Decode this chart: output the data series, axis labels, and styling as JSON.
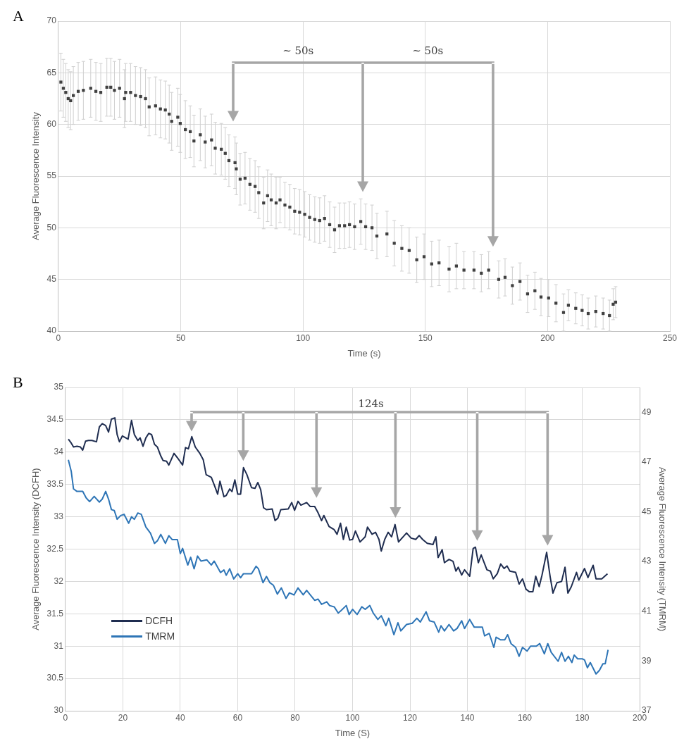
{
  "chart_data": [
    {
      "type": "scatter",
      "xlabel": "Time (s)",
      "ylabel": "Average Fluorescence Intensity",
      "grid": true,
      "marker": "square",
      "color": "#404040",
      "annotations": [
        "A",
        "~ 50s",
        "~ 50s"
      ],
      "xlim": [
        0,
        250
      ],
      "xticks": [
        0,
        50,
        100,
        150,
        200,
        250
      ],
      "ylim": [
        40,
        70
      ],
      "yticks": [
        40,
        45,
        50,
        55,
        60,
        65,
        70
      ],
      "x": [
        1,
        2,
        3,
        4,
        5,
        6.1,
        8.1,
        10.2,
        13.2,
        15.3,
        17.3,
        19.8,
        21.4,
        22.9,
        25,
        27,
        27.5,
        29.5,
        31.5,
        33.6,
        35.6,
        37.1,
        39.7,
        41.7,
        43.7,
        45.3,
        46.3,
        48.8,
        49.8,
        51.9,
        53.9,
        55.4,
        58,
        60,
        62.6,
        64.1,
        66.6,
        68.2,
        69.7,
        72.2,
        72.7,
        74.3,
        76.3,
        78.3,
        80.4,
        81.9,
        83.9,
        85.5,
        87,
        89,
        90.6,
        92.6,
        94.6,
        96.6,
        98.6,
        100.7,
        102.7,
        104.8,
        106.8,
        108.8,
        110.9,
        112.9,
        114.9,
        117,
        119,
        121.1,
        123.6,
        125.6,
        128.2,
        130.2,
        134.3,
        137.3,
        140.4,
        143.4,
        146.5,
        149.5,
        152.6,
        155.6,
        159.7,
        162.7,
        165.8,
        169.9,
        172.9,
        175.9,
        180,
        182.6,
        185.6,
        188.7,
        191.8,
        194.8,
        197.3,
        200.4,
        203.4,
        206.5,
        208.5,
        211.5,
        214.1,
        216.6,
        219.7,
        222.7,
        225.3,
        226.8,
        227.8
      ],
      "values": [
        64.1,
        63.5,
        63.1,
        62.5,
        62.3,
        62.8,
        63.2,
        63.3,
        63.5,
        63.2,
        63.1,
        63.6,
        63.6,
        63.3,
        63.5,
        62.5,
        63.1,
        63.1,
        62.8,
        62.7,
        62.5,
        61.7,
        61.8,
        61.5,
        61.4,
        61.0,
        60.3,
        60.7,
        60.1,
        59.5,
        59.3,
        58.4,
        59.0,
        58.3,
        58.5,
        57.7,
        57.6,
        57.2,
        56.5,
        56.3,
        55.7,
        54.7,
        54.8,
        54.2,
        54.0,
        53.4,
        52.4,
        53.1,
        52.7,
        52.4,
        52.7,
        52.2,
        52.0,
        51.6,
        51.5,
        51.3,
        51.0,
        50.8,
        50.7,
        50.9,
        50.3,
        49.8,
        50.2,
        50.2,
        50.3,
        50.1,
        50.6,
        50.1,
        50.0,
        49.2,
        49.4,
        48.5,
        48.0,
        47.8,
        46.9,
        47.2,
        46.5,
        46.6,
        46.0,
        46.3,
        45.9,
        45.9,
        45.6,
        45.9,
        45.0,
        45.2,
        44.4,
        44.8,
        43.6,
        43.9,
        43.3,
        43.2,
        42.7,
        41.8,
        42.5,
        42.2,
        42.0,
        41.7,
        41.9,
        41.7,
        41.5,
        42.6,
        42.8
      ],
      "errors": [
        2.8,
        2.8,
        2.8,
        2.8,
        2.8,
        2.8,
        2.8,
        2.8,
        2.8,
        2.8,
        2.8,
        2.8,
        2.8,
        2.8,
        2.8,
        2.8,
        2.8,
        2.8,
        2.8,
        2.8,
        2.8,
        2.8,
        2.8,
        2.8,
        2.8,
        2.8,
        2.8,
        2.8,
        2.8,
        2.8,
        2.5,
        2.5,
        2.5,
        2.5,
        2.5,
        2.5,
        2.5,
        2.5,
        2.5,
        2.5,
        2.5,
        2.5,
        2.5,
        2.5,
        2.5,
        2.5,
        2.5,
        2.5,
        2.5,
        2.5,
        2.2,
        2.2,
        2.2,
        2.2,
        2.2,
        2.2,
        2.2,
        2.2,
        2.2,
        2.2,
        2.2,
        2.2,
        2.2,
        2.2,
        2.2,
        2.2,
        2.2,
        2.2,
        2.2,
        2.2,
        2.2,
        2.2,
        2.2,
        2.2,
        2.2,
        2.2,
        2.2,
        2.2,
        2.2,
        2.2,
        1.8,
        1.8,
        1.8,
        1.8,
        1.8,
        1.8,
        1.8,
        1.8,
        1.8,
        1.8,
        1.8,
        1.8,
        1.8,
        1.8,
        1.5,
        1.5,
        1.5,
        1.5,
        1.5,
        1.5,
        1.5,
        1.5,
        1.5
      ]
    },
    {
      "type": "line",
      "xlabel": "Time (S)",
      "ylabel": "Average Fluorescence Intensity (DCFH)",
      "y2label": "Average Fluorescence Intensity (TMRM)",
      "grid": true,
      "legend": "bottom left",
      "line_style": "solid",
      "annotations": [
        "B",
        "124s"
      ],
      "xlim": [
        0,
        200
      ],
      "xticks": [
        0,
        20,
        40,
        60,
        80,
        100,
        120,
        140,
        160,
        180,
        200
      ],
      "ylim": [
        30,
        35
      ],
      "yticks": [
        30,
        30.5,
        31,
        31.5,
        32,
        32.5,
        33,
        33.5,
        34,
        34.5,
        35
      ],
      "y2lim": [
        37,
        50
      ],
      "y2ticks": [
        37,
        39,
        41,
        43,
        45,
        47,
        49
      ],
      "series": [
        {
          "name": "DCFH",
          "color": "#1f2d50",
          "x": [
            1,
            2,
            2.8,
            4,
            5.2,
            6,
            7,
            8,
            9.2,
            10.8,
            11.8,
            12.8,
            14,
            15,
            16,
            17.2,
            18,
            18.8,
            19.8,
            21.8,
            23,
            24,
            25.2,
            26,
            27,
            28,
            29,
            30,
            31,
            32,
            33.2,
            34,
            35.2,
            36,
            37.8,
            39.2,
            40.8,
            41.8,
            42.8,
            44,
            45.2,
            46.8,
            48,
            49,
            50.8,
            52,
            53,
            53.8,
            55.2,
            56,
            57.2,
            58,
            59,
            60,
            61,
            62,
            63.2,
            64.8,
            66,
            67,
            68,
            69,
            70,
            72,
            73,
            74,
            75,
            77.6,
            78.8,
            79.8,
            81,
            82,
            84,
            85.2,
            86.8,
            88,
            89.2,
            90,
            91.8,
            93.6,
            94.6,
            95.8,
            96.8,
            97.8,
            99,
            100,
            101,
            102.6,
            104.4,
            105.2,
            106.8,
            108,
            109.2,
            110,
            111.2,
            112.4,
            113.6,
            114.8,
            116,
            117.6,
            118.8,
            120.4,
            122,
            123.2,
            124.4,
            126,
            128,
            129,
            129.8,
            131.2,
            132,
            133.6,
            135,
            136,
            136.8,
            138,
            139,
            140.8,
            142,
            142.8,
            143.8,
            144.8,
            146.8,
            148,
            149,
            150.4,
            151.6,
            152.8,
            153.8,
            154.8,
            156.8,
            158,
            159.2,
            160.4,
            161.6,
            162.8,
            163.8,
            165,
            166,
            167.6,
            168.8,
            169.8,
            171.2,
            172.8,
            174,
            175,
            176.2,
            178,
            178.8,
            180.8,
            182,
            183.8,
            184.8,
            186.8,
            188.8
          ],
          "values": [
            34.2,
            34.14,
            34.08,
            34.09,
            34.08,
            34.03,
            34.17,
            34.18,
            34.18,
            34.16,
            34.39,
            34.44,
            34.41,
            34.31,
            34.51,
            34.53,
            34.27,
            34.16,
            34.25,
            34.2,
            34.49,
            34.27,
            34.18,
            34.22,
            34.09,
            34.22,
            34.29,
            34.27,
            34.12,
            34.08,
            33.94,
            33.87,
            33.86,
            33.8,
            33.98,
            33.9,
            33.8,
            34.07,
            34.05,
            34.24,
            34.08,
            33.98,
            33.88,
            33.65,
            33.61,
            33.47,
            33.35,
            33.55,
            33.31,
            33.33,
            33.43,
            33.39,
            33.57,
            33.35,
            33.35,
            33.76,
            33.65,
            33.45,
            33.44,
            33.53,
            33.42,
            33.14,
            33.11,
            33.12,
            32.94,
            32.98,
            33.11,
            33.12,
            33.22,
            33.1,
            33.24,
            33.18,
            33.22,
            33.16,
            33.16,
            33.06,
            32.94,
            33.02,
            32.85,
            32.8,
            32.73,
            32.9,
            32.65,
            32.84,
            32.64,
            32.65,
            32.78,
            32.61,
            32.69,
            32.84,
            32.73,
            32.76,
            32.65,
            32.47,
            32.65,
            32.76,
            32.69,
            32.88,
            32.61,
            32.69,
            32.75,
            32.67,
            32.65,
            32.71,
            32.65,
            32.59,
            32.57,
            32.69,
            32.37,
            32.49,
            32.29,
            32.34,
            32.31,
            32.16,
            32.22,
            32.1,
            32.18,
            32.08,
            32.51,
            32.53,
            32.29,
            32.41,
            32.18,
            32.16,
            32.04,
            32.12,
            32.27,
            32.2,
            32.24,
            32.16,
            32.14,
            31.96,
            32.04,
            31.88,
            31.84,
            31.84,
            32.08,
            31.92,
            32.1,
            32.45,
            32.08,
            31.82,
            31.98,
            32,
            32.22,
            31.82,
            31.92,
            32.14,
            32.02,
            32.2,
            32.06,
            32.25,
            32.04,
            32.04,
            32.12
          ]
        },
        {
          "name": "TMRM",
          "color": "#2e75b6",
          "axis": "y2",
          "x": [
            1,
            2,
            2.8,
            4,
            6,
            7.2,
            8.4,
            10,
            11.8,
            12.8,
            14,
            15,
            16,
            17,
            18,
            19.2,
            20.4,
            22,
            23,
            24,
            25.2,
            26.4,
            28,
            29.6,
            31,
            32,
            33.2,
            34.8,
            36,
            37.2,
            39,
            40,
            40.8,
            42.6,
            43.6,
            44.8,
            46,
            47.2,
            49.2,
            50.8,
            51.8,
            54,
            55.2,
            56,
            57.2,
            58.6,
            60,
            61,
            62,
            64.8,
            66.4,
            67.2,
            68.8,
            70,
            71.2,
            72.4,
            73.8,
            75.2,
            76.8,
            78,
            79.6,
            81,
            82.8,
            84,
            86.8,
            88,
            89.2,
            91,
            92,
            93.6,
            95,
            96,
            97.8,
            98.8,
            100,
            101.6,
            103.2,
            104.4,
            106,
            107.2,
            108.8,
            110,
            111.6,
            112.6,
            114.4,
            115.8,
            116.8,
            118.8,
            120.8,
            122.4,
            123.6,
            125.6,
            126.8,
            128.4,
            130,
            130.8,
            132,
            133.6,
            135.2,
            136.4,
            138,
            139,
            140.8,
            142.4,
            145.2,
            146,
            147.6,
            149.2,
            150,
            151.6,
            153,
            154,
            155.2,
            156.8,
            158,
            159.2,
            160.8,
            162,
            164,
            165.2,
            166.8,
            168,
            169.2,
            171.6,
            172.8,
            174,
            175.2,
            176.4,
            177.2,
            178.4,
            180,
            180.8,
            181.8,
            182.8,
            184.8,
            186,
            187.2,
            188,
            189
          ],
          "values": [
            47.09,
            46.63,
            45.92,
            45.82,
            45.82,
            45.56,
            45.41,
            45.62,
            45.39,
            45.51,
            45.82,
            45.51,
            45.09,
            45.05,
            44.7,
            44.85,
            44.9,
            44.54,
            44.8,
            44.7,
            44.95,
            44.9,
            44.39,
            44.14,
            43.73,
            43.83,
            44.09,
            43.73,
            44.04,
            43.88,
            43.88,
            43.32,
            43.53,
            42.86,
            43.17,
            42.71,
            43.22,
            43.02,
            43.07,
            42.86,
            43.02,
            42.56,
            42.66,
            42.45,
            42.71,
            42.3,
            42.51,
            42.35,
            42.51,
            42.51,
            42.81,
            42.71,
            42.15,
            42.4,
            42.15,
            42.05,
            41.69,
            41.94,
            41.52,
            41.74,
            41.66,
            41.94,
            41.66,
            41.84,
            41.44,
            41.49,
            41.28,
            41.38,
            41.23,
            41.18,
            40.93,
            41.03,
            41.23,
            40.87,
            41.08,
            40.87,
            41.18,
            41.08,
            41.23,
            40.93,
            40.67,
            40.82,
            40.42,
            40.72,
            40.06,
            40.54,
            40.21,
            40.47,
            40.52,
            40.72,
            40.57,
            40.98,
            40.62,
            40.57,
            40.16,
            40.42,
            40.21,
            40.47,
            40.21,
            40.31,
            40.62,
            40.31,
            40.67,
            40.36,
            40.36,
            40.01,
            40.11,
            39.55,
            39.96,
            39.85,
            39.85,
            40.06,
            39.7,
            39.55,
            39.19,
            39.55,
            39.4,
            39.6,
            39.6,
            39.7,
            39.29,
            39.7,
            39.35,
            38.99,
            39.35,
            38.99,
            39.19,
            38.94,
            39.24,
            39.09,
            39.09,
            39.04,
            38.73,
            38.94,
            38.48,
            38.63,
            38.89,
            38.89,
            39.45
          ]
        }
      ]
    }
  ]
}
